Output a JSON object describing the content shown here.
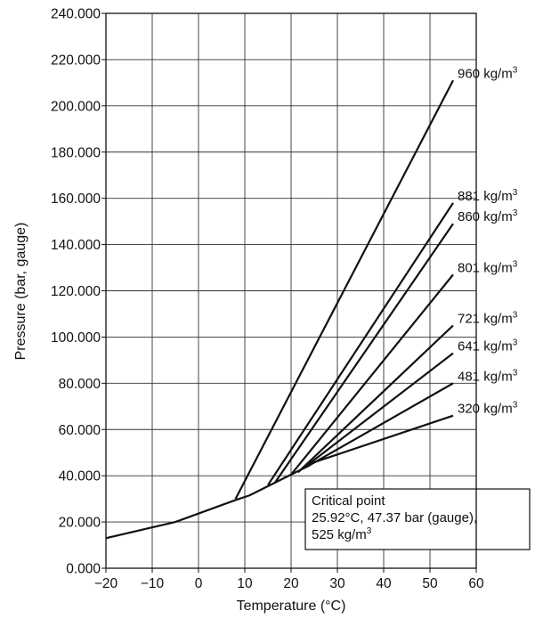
{
  "chart_data": {
    "type": "line",
    "title": "",
    "xlabel": "Temperature (°C)",
    "ylabel": "Pressure (bar, gauge)",
    "xlim": [
      -20,
      60
    ],
    "ylim": [
      0,
      240
    ],
    "grid": true,
    "legend": "none",
    "x_ticks": [
      "−20",
      "−10",
      "0",
      "10",
      "20",
      "30",
      "40",
      "50",
      "60"
    ],
    "y_ticks": [
      "0.000",
      "20.000",
      "40.000",
      "60.000",
      "80.000",
      "100.000",
      "120.000",
      "140.000",
      "160.000",
      "180.000",
      "200.000",
      "220.000",
      "240.000"
    ],
    "saturation_curve": {
      "x": [
        -20,
        -5,
        8,
        11,
        15,
        20,
        24
      ],
      "y": [
        13,
        20,
        29.5,
        31.5,
        35.5,
        40.5,
        44.5
      ]
    },
    "series": [
      {
        "name": "960 kg/m",
        "x": [
          8,
          55
        ],
        "y": [
          30,
          211
        ]
      },
      {
        "name": "881 kg/m",
        "x": [
          15,
          55
        ],
        "y": [
          36,
          158
        ]
      },
      {
        "name": "860 kg/m",
        "x": [
          16.5,
          55
        ],
        "y": [
          37,
          149
        ]
      },
      {
        "name": "801 kg/m",
        "x": [
          20,
          55
        ],
        "y": [
          40.5,
          127
        ]
      },
      {
        "name": "721 kg/m",
        "x": [
          21.5,
          55
        ],
        "y": [
          41.5,
          105
        ]
      },
      {
        "name": "641 kg/m",
        "x": [
          22.5,
          55
        ],
        "y": [
          43,
          93
        ]
      },
      {
        "name": "481 kg/m",
        "x": [
          23.5,
          55
        ],
        "y": [
          44,
          80
        ]
      },
      {
        "name": "320 kg/m",
        "x": [
          24.5,
          55
        ],
        "y": [
          45.5,
          66
        ]
      }
    ],
    "label_unit_superscript": "3",
    "annotation": {
      "lines": [
        "Critical point",
        "25.92°C, 47.37 bar (gauge),",
        "525 kg/m"
      ],
      "superscript": "3"
    }
  }
}
